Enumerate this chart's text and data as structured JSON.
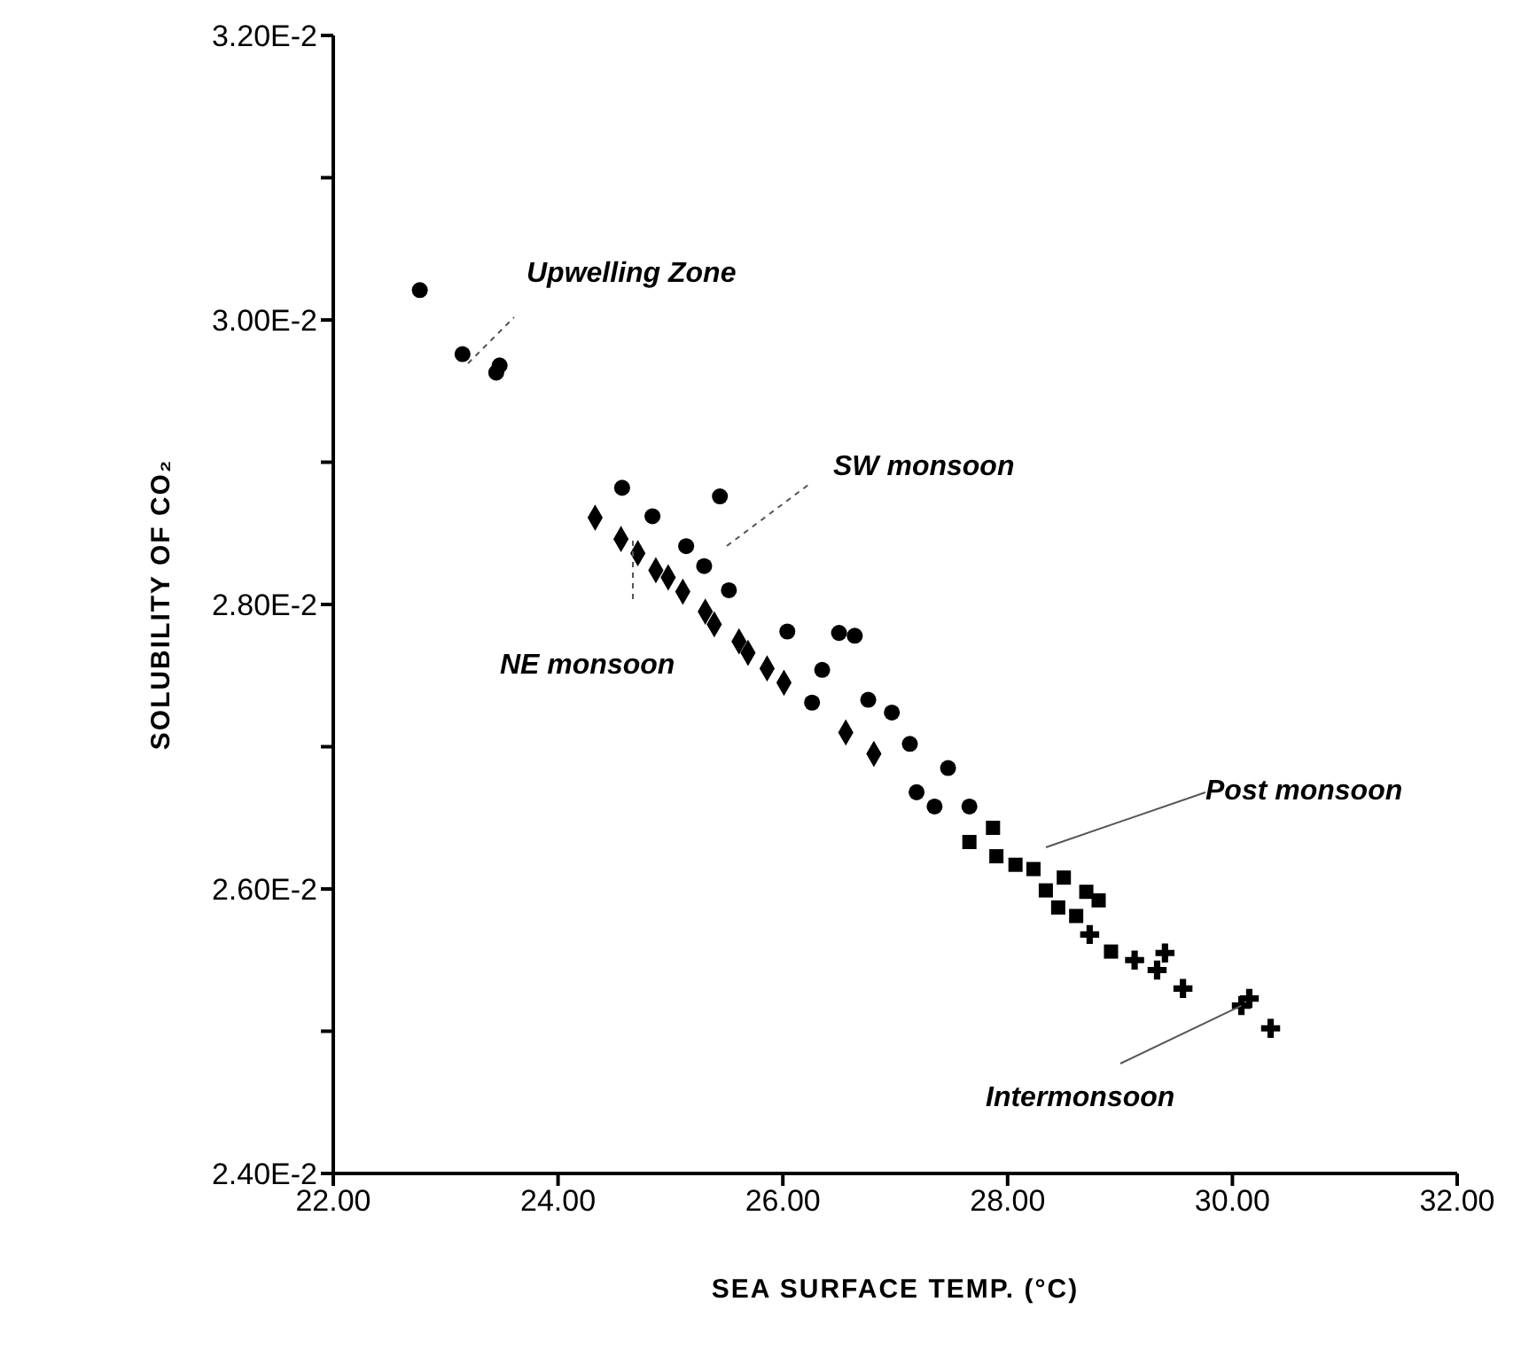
{
  "chart_data": {
    "type": "scatter",
    "xlabel": "SEA SURFACE TEMP. (°C)",
    "ylabel": "SOLUBILITY OF CO₂",
    "xlim": [
      22,
      32
    ],
    "xticks": [
      {
        "value": 22,
        "label": "22.00"
      },
      {
        "value": 24,
        "label": "24.00"
      },
      {
        "value": 26,
        "label": "26.00"
      },
      {
        "value": 28,
        "label": "28.00"
      },
      {
        "value": 30,
        "label": "30.00"
      },
      {
        "value": 32,
        "label": "32.00"
      }
    ],
    "ylim": [
      0.024,
      0.032
    ],
    "yticks": [
      {
        "value": 0.024,
        "label": "2.40E-2"
      },
      {
        "value": 0.025,
        "label": null
      },
      {
        "value": 0.026,
        "label": "2.60E-2"
      },
      {
        "value": 0.027,
        "label": null
      },
      {
        "value": 0.028,
        "label": "2.80E-2"
      },
      {
        "value": 0.029,
        "label": null
      },
      {
        "value": 0.03,
        "label": "3.00E-2"
      },
      {
        "value": 0.031,
        "label": null
      },
      {
        "value": 0.032,
        "label": "3.20E-2"
      }
    ],
    "grid": false,
    "series": [
      {
        "color": "#000000",
        "marker": "circle",
        "x": [
          22.77,
          23.15,
          23.45,
          23.48
        ],
        "values": [
          0.03021,
          0.02976,
          0.02963,
          0.02968
        ]
      },
      {
        "color": "#000000",
        "marker": "circle",
        "x": [
          24.57,
          24.84,
          25.44,
          25.14,
          25.3,
          25.52,
          26.04,
          26.35,
          26.5,
          26.64,
          26.76,
          26.97,
          26.26,
          27.13,
          27.19,
          27.35,
          27.47,
          27.66
        ],
        "values": [
          0.02882,
          0.02862,
          0.02876,
          0.02841,
          0.02827,
          0.0281,
          0.02781,
          0.02754,
          0.0278,
          0.02778,
          0.02733,
          0.02724,
          0.02731,
          0.02702,
          0.02668,
          0.02658,
          0.02685,
          0.02658
        ]
      },
      {
        "color": "#000000",
        "marker": "diamond",
        "x": [
          24.33,
          24.56,
          24.71,
          24.87,
          24.98,
          25.11,
          25.31,
          25.39,
          25.61,
          25.69,
          25.86,
          26.01,
          26.56,
          26.81
        ],
        "values": [
          0.02861,
          0.02846,
          0.02836,
          0.02824,
          0.02819,
          0.02809,
          0.02795,
          0.02786,
          0.02774,
          0.02766,
          0.02755,
          0.02745,
          0.0271,
          0.02695
        ]
      },
      {
        "color": "#000000",
        "marker": "square",
        "x": [
          27.87,
          27.66,
          27.9,
          28.07,
          28.23,
          28.34,
          28.5,
          28.7,
          28.81,
          28.45,
          28.61,
          28.92
        ],
        "values": [
          0.02643,
          0.02633,
          0.02623,
          0.02617,
          0.02614,
          0.02599,
          0.02608,
          0.02598,
          0.02592,
          0.02587,
          0.02581,
          0.02556
        ]
      },
      {
        "color": "#000000",
        "marker": "cross",
        "x": [
          28.73,
          29.13,
          29.4,
          29.33,
          29.56,
          30.08,
          30.15,
          30.34
        ],
        "values": [
          0.02568,
          0.0255,
          0.02555,
          0.02543,
          0.0253,
          0.02518,
          0.02523,
          0.02502
        ]
      }
    ],
    "annotations": [
      "Upwelling Zone",
      "SW monsoon",
      "NE monsoon",
      "Post monsoon",
      {
        "text": "Intermonsoon",
        "x": 30.08,
        "y": 0.02518
      }
    ]
  }
}
